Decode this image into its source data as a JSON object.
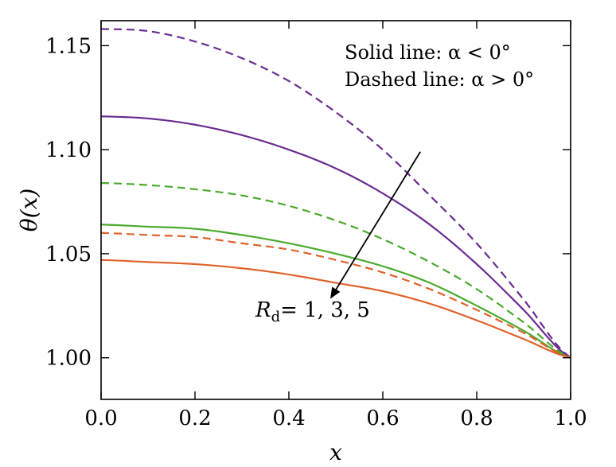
{
  "chart_data": {
    "type": "line",
    "xlabel": "x",
    "ylabel": "θ(x)",
    "xlim": [
      0,
      1
    ],
    "ylim": [
      0.98,
      1.162
    ],
    "xticks": [
      0.0,
      0.2,
      0.4,
      0.6,
      0.8,
      1.0
    ],
    "xtick_labels": [
      "0.0",
      "0.2",
      "0.4",
      "0.6",
      "0.8",
      "1.0"
    ],
    "yticks": [
      1.0,
      1.05,
      1.1,
      1.15
    ],
    "ytick_labels": [
      "1.00",
      "1.05",
      "1.10",
      "1.15"
    ],
    "grid": false,
    "legend_text": {
      "line1": "Solid line: α < 0°",
      "line2": "Dashed line: α > 0°"
    },
    "arrow_annotation": {
      "label_R": "R",
      "label_sub": "d",
      "label_rest": "= 1, 3, 5",
      "from": [
        0.68,
        1.099
      ],
      "to": [
        0.49,
        1.029
      ]
    },
    "x": [
      0.0,
      0.1,
      0.2,
      0.3,
      0.4,
      0.5,
      0.6,
      0.7,
      0.8,
      0.9,
      1.0
    ],
    "series": [
      {
        "color": "#6a2c91",
        "dash": "dashed",
        "values": [
          1.158,
          1.157,
          1.152,
          1.144,
          1.133,
          1.118,
          1.1,
          1.078,
          1.055,
          1.028,
          1.0
        ]
      },
      {
        "color": "#6a2c91",
        "dash": "solid",
        "values": [
          1.116,
          1.115,
          1.112,
          1.107,
          1.1,
          1.091,
          1.079,
          1.064,
          1.045,
          1.023,
          1.0
        ]
      },
      {
        "color": "#4aaa2c",
        "dash": "dashed",
        "values": [
          1.084,
          1.083,
          1.081,
          1.078,
          1.073,
          1.066,
          1.057,
          1.046,
          1.033,
          1.017,
          1.0
        ]
      },
      {
        "color": "#4aaa2c",
        "dash": "solid",
        "values": [
          1.064,
          1.063,
          1.062,
          1.059,
          1.055,
          1.05,
          1.044,
          1.036,
          1.025,
          1.013,
          1.0
        ]
      },
      {
        "color": "#e0622a",
        "dash": "dashed",
        "values": [
          1.06,
          1.059,
          1.058,
          1.055,
          1.052,
          1.047,
          1.041,
          1.033,
          1.023,
          1.012,
          1.0
        ]
      },
      {
        "color": "#e0622a",
        "dash": "solid",
        "values": [
          1.047,
          1.046,
          1.045,
          1.043,
          1.04,
          1.036,
          1.032,
          1.026,
          1.018,
          1.009,
          1.0
        ]
      }
    ]
  }
}
